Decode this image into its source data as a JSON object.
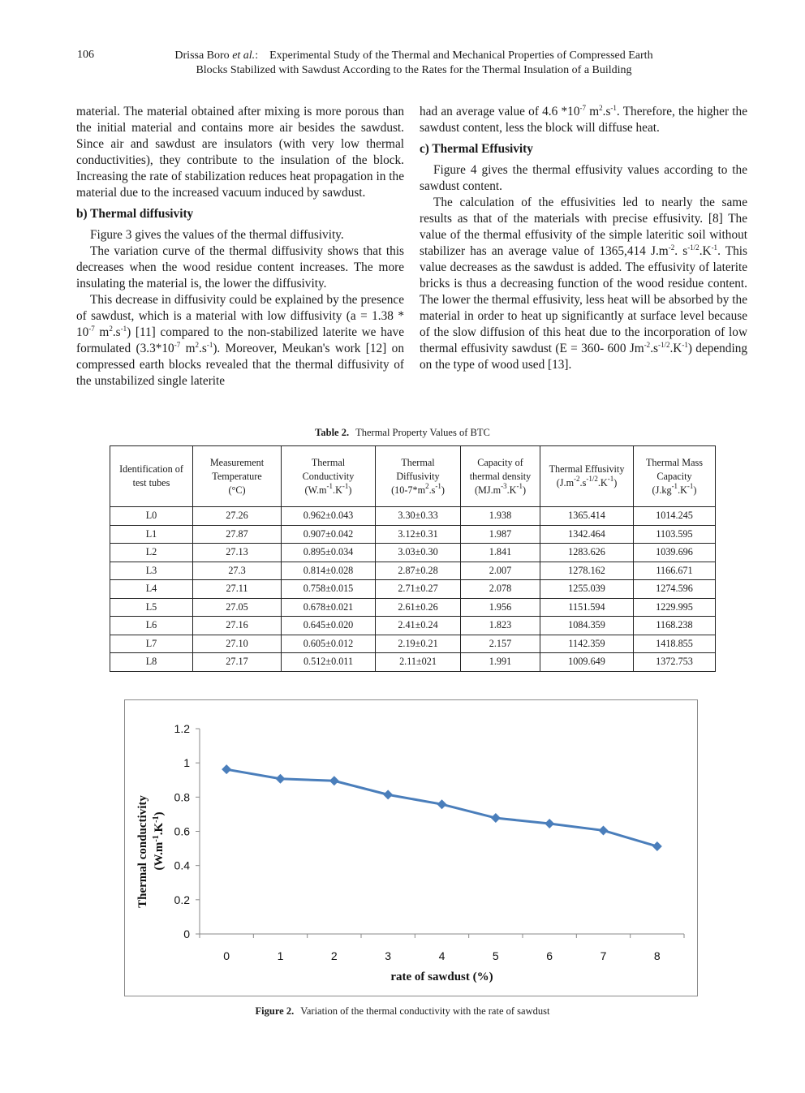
{
  "header": {
    "page_number": "106",
    "running_head_line1_pre": "Drissa Boro ",
    "running_head_line1_etal": "et al.",
    "running_head_line1_post": ":    Experimental Study of the Thermal and Mechanical Properties of Compressed Earth",
    "running_head_line2": "Blocks Stabilized with Sawdust According to the Rates for the Thermal Insulation of a Building"
  },
  "left_column": {
    "p1": "material. The material obtained after mixing is more porous than the initial material and contains more air besides the sawdust. Since air and sawdust are insulators (with very low thermal conductivities), they contribute to the insulation of the block. Increasing the rate of stabilization reduces heat propagation in the material due to the increased vacuum induced by sawdust.",
    "heading_b": "b) Thermal diffusivity",
    "p2": "Figure 3 gives the values of the thermal diffusivity.",
    "p3": "The variation curve of the thermal diffusivity shows that this decreases when the wood residue content increases. The more insulating the material is, the lower the diffusivity.",
    "p4_a": "This decrease in diffusivity could be explained by the presence of sawdust, which is a material with low diffusivity (a = 1.38 * 10",
    "p4_sup1": "-7",
    "p4_b": " m",
    "p4_sup2": "2",
    "p4_c": ".s",
    "p4_sup3": "-1",
    "p4_d": ") [11] compared to the non-stabilized laterite we have formulated (3.3*10",
    "p4_sup4": "-7",
    "p4_e": " m",
    "p4_sup5": "2",
    "p4_f": ".s",
    "p4_sup6": "-1",
    "p4_g": "). Moreover, Meukan's work [12] on compressed earth blocks revealed that the thermal diffusivity of the unstabilized single laterite"
  },
  "right_column": {
    "p1_a": "had an average value of 4.6 *10",
    "p1_sup1": "-7",
    "p1_b": " m",
    "p1_sup2": "2",
    "p1_c": ".s",
    "p1_sup3": "-1",
    "p1_d": ". Therefore, the higher the sawdust content, less the block will diffuse heat.",
    "heading_c": "c) Thermal Effusivity",
    "p2": "Figure 4 gives the thermal effusivity values according to the sawdust content.",
    "p3_a": "The calculation of the effusivities led to nearly the same results as that of the materials with precise effusivity. [8] The value of the thermal effusivity of the simple lateritic soil without stabilizer has an average value of 1365,414 J.m",
    "p3_sup1": "-2",
    "p3_b": ". s",
    "p3_sup2": "-1/2",
    "p3_c": ".K",
    "p3_sup3": "-1",
    "p3_d": ". This value decreases as the sawdust is added. The effusivity of laterite bricks is thus a decreasing function of the wood residue content. The lower the thermal effusivity, less heat will be absorbed by the material in order to heat up significantly at surface level because of the slow diffusion of this heat due to the incorporation of low thermal effusivity sawdust (E = 360- 600 Jm",
    "p3_sup4": "-2",
    "p3_e": ".s",
    "p3_sup5": "-1/2",
    "p3_f": ".K",
    "p3_sup6": "-1",
    "p3_g": ") depending on the type of wood used [13]."
  },
  "table": {
    "caption_label": "Table 2.",
    "caption_text": "Thermal Property Values of BTC",
    "headers": [
      {
        "text": "Identification of test tubes",
        "unit": ""
      },
      {
        "text": "Measurement Temperature",
        "unit": "(°C)"
      },
      {
        "text": "Thermal Conductivity",
        "unit": "(W.m-1.K-1)"
      },
      {
        "text": "Thermal Diffusivity",
        "unit": "(10-7*m2.s-1)"
      },
      {
        "text": "Capacity of thermal density",
        "unit": "(MJ.m-3.K-1)"
      },
      {
        "text": "Thermal Effusivity",
        "unit": "(J.m-2.s-1/2.K-1)"
      },
      {
        "text": "Thermal Mass Capacity",
        "unit": "(J.kg-1.K-1)"
      }
    ],
    "rows": [
      [
        "L0",
        "27.26",
        "0.962±0.043",
        "3.30±0.33",
        "1.938",
        "1365.414",
        "1014.245"
      ],
      [
        "L1",
        "27.87",
        "0.907±0.042",
        "3.12±0.31",
        "1.987",
        "1342.464",
        "1103.595"
      ],
      [
        "L2",
        "27.13",
        "0.895±0.034",
        "3.03±0.30",
        "1.841",
        "1283.626",
        "1039.696"
      ],
      [
        "L3",
        "27.3",
        "0.814±0.028",
        "2.87±0.28",
        "2.007",
        "1278.162",
        "1166.671"
      ],
      [
        "L4",
        "27.11",
        "0.758±0.015",
        "2.71±0.27",
        "2.078",
        "1255.039",
        "1274.596"
      ],
      [
        "L5",
        "27.05",
        "0.678±0.021",
        "2.61±0.26",
        "1.956",
        "1151.594",
        "1229.995"
      ],
      [
        "L6",
        "27.16",
        "0.645±0.020",
        "2.41±0.24",
        "1.823",
        "1084.359",
        "1168.238"
      ],
      [
        "L7",
        "27.10",
        "0.605±0.012",
        "2.19±0.21",
        "2.157",
        "1142.359",
        "1418.855"
      ],
      [
        "L8",
        "27.17",
        "0.512±0.011",
        "2.11±021",
        "1.991",
        "1009.649",
        "1372.753"
      ]
    ]
  },
  "figure": {
    "caption_label": "Figure 2.",
    "caption_text": "Variation of the thermal conductivity with the rate of sawdust"
  },
  "chart_data": {
    "type": "line",
    "x": [
      0,
      1,
      2,
      3,
      4,
      5,
      6,
      7,
      8
    ],
    "x_tick_labels": [
      "0",
      "1",
      "2",
      "3",
      "4",
      "5",
      "6",
      "7",
      "8"
    ],
    "series": [
      {
        "values": [
          0.962,
          0.907,
          0.895,
          0.814,
          0.758,
          0.678,
          0.645,
          0.605,
          0.512
        ]
      }
    ],
    "xlabel": "rate of sawdust (%)",
    "ylabel_line1": "Thermal  conductivity",
    "ylabel_line2": "(W.m-1.K-1)",
    "ylim": [
      0,
      1.2
    ],
    "y_ticks": [
      0,
      0.2,
      0.4,
      0.6,
      0.8,
      1,
      1.2
    ],
    "y_tick_labels": [
      "0",
      "0.2",
      "0.4",
      "0.6",
      "0.8",
      "1",
      "1.2"
    ],
    "grid": false,
    "legend": "none",
    "line_color": "#4a7ebb",
    "marker": "diamond"
  }
}
